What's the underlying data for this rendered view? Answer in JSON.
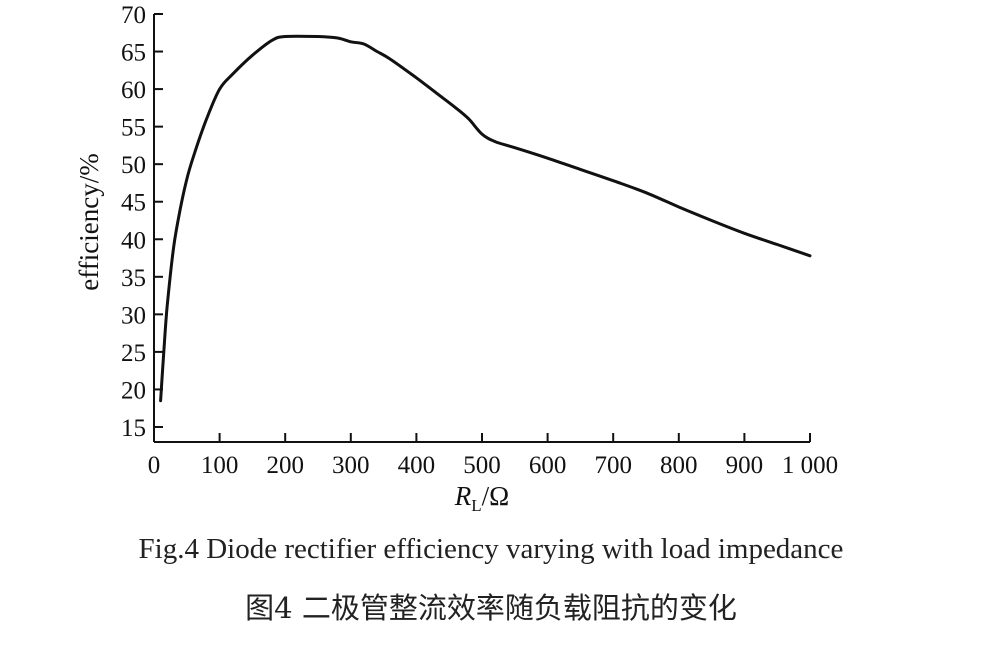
{
  "chart_data": {
    "type": "line",
    "xlabel": "R",
    "xlabel_sub": "L",
    "xlabel_unit": "/Ω",
    "ylabel": "efficiency/%",
    "xlim": [
      0,
      1000
    ],
    "ylim": [
      13,
      70
    ],
    "x_ticks": [
      0,
      100,
      200,
      300,
      400,
      500,
      600,
      700,
      800,
      900,
      1000
    ],
    "x_tick_labels": [
      "0",
      "100",
      "200",
      "300",
      "400",
      "500",
      "600",
      "700",
      "800",
      "900",
      "1 000"
    ],
    "y_ticks": [
      15,
      20,
      25,
      30,
      35,
      40,
      45,
      50,
      55,
      60,
      65,
      70
    ],
    "y_tick_labels": [
      "15",
      "20",
      "25",
      "30",
      "35",
      "40",
      "45",
      "50",
      "55",
      "60",
      "65",
      "70"
    ],
    "grid": false,
    "series": [
      {
        "x": [
          10,
          15,
          20,
          30,
          40,
          50,
          60,
          80,
          100,
          120,
          150,
          180,
          200,
          250,
          280,
          300,
          320,
          340,
          360,
          400,
          430,
          460,
          480,
          500,
          520,
          550,
          600,
          650,
          700,
          750,
          800,
          850,
          900,
          950,
          1000
        ],
        "y": [
          18.5,
          25,
          31,
          39,
          44,
          48,
          51,
          56,
          60,
          62,
          64.5,
          66.5,
          67,
          67,
          66.8,
          66.3,
          66,
          65,
          64,
          61.5,
          59.5,
          57.5,
          56,
          54,
          53,
          52.2,
          50.8,
          49.3,
          47.8,
          46.2,
          44.3,
          42.5,
          40.8,
          39.3,
          37.8
        ],
        "color": "#111111"
      }
    ]
  },
  "caption_en": "Fig.4 Diode rectifier efficiency varying with load impedance",
  "caption_zh": "图4 二极管整流效率随负载阻抗的变化"
}
